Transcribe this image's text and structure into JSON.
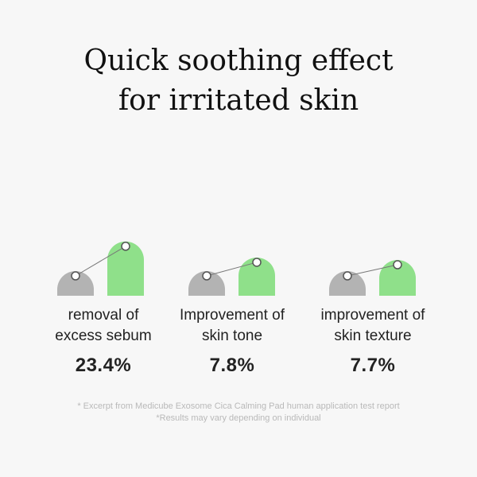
{
  "title": {
    "line1": "Quick soothing effect",
    "line2": "for irritated skin"
  },
  "colors": {
    "before_bar": "#b3b3b3",
    "after_bar": "#8fe08a",
    "connector": "#777777",
    "marker_fill": "#ffffff",
    "marker_stroke": "#555555"
  },
  "chart_data": {
    "type": "bar",
    "categories": [
      "removal of excess sebum",
      "Improvement of skin tone",
      "improvement of skin texture"
    ],
    "series": [
      {
        "values": [
          1.0,
          1.0,
          1.0
        ]
      },
      {
        "values": [
          2.2,
          1.55,
          1.45
        ]
      }
    ],
    "values": [
      23.4,
      7.8,
      7.7
    ],
    "value_labels": [
      "23.4%",
      "7.8%",
      "7.7%"
    ]
  },
  "groups": [
    {
      "label_line1": "removal of",
      "label_line2": "excess sebum",
      "value": "23.4%"
    },
    {
      "label_line1": "Improvement of",
      "label_line2": "skin tone",
      "value": "7.8%"
    },
    {
      "label_line1": "improvement of",
      "label_line2": "skin texture",
      "value": "7.7%"
    }
  ],
  "footnotes": {
    "line1": "* Excerpt from Medicube Exosome Cica Calming Pad human application test report",
    "line2": "*Results may vary depending on individual"
  }
}
